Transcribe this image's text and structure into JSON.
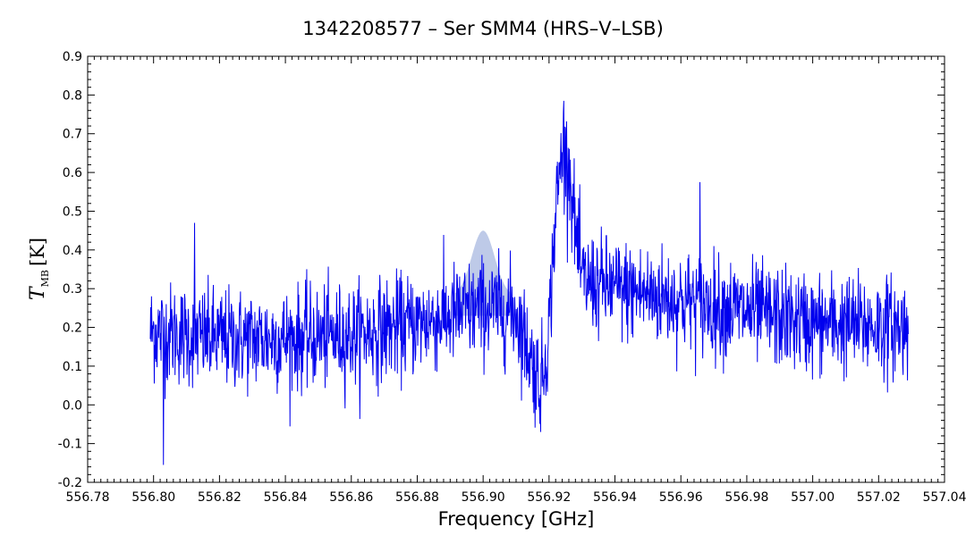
{
  "chart_data": {
    "type": "line",
    "title": "1342208577 – Ser SMM4 (HRS–V–LSB)",
    "xlabel": "Frequency [GHz]",
    "ylabel": {
      "symbol": "T",
      "subscript": "MB",
      "unit": "[K]"
    },
    "xlim": [
      556.78,
      557.04
    ],
    "ylim": [
      -0.2,
      0.9
    ],
    "x_ticks": [
      "556.78",
      "556.80",
      "556.82",
      "556.84",
      "556.86",
      "556.88",
      "556.90",
      "556.92",
      "556.94",
      "556.96",
      "556.98",
      "557.00",
      "557.02",
      "557.04"
    ],
    "y_ticks": [
      "-0.2",
      "-0.1",
      "0.0",
      "0.1",
      "0.2",
      "0.3",
      "0.4",
      "0.5",
      "0.6",
      "0.7",
      "0.8",
      "0.9"
    ],
    "grid": false,
    "series": [
      {
        "color": "#0000ee",
        "x_range": [
          556.799,
          557.029
        ],
        "baseline_profile": [
          [
            556.799,
            0.19
          ],
          [
            556.82,
            0.17
          ],
          [
            556.84,
            0.17
          ],
          [
            556.86,
            0.18
          ],
          [
            556.88,
            0.21
          ],
          [
            556.9,
            0.25
          ],
          [
            556.91,
            0.24
          ],
          [
            556.913,
            0.16
          ],
          [
            556.916,
            0.08
          ],
          [
            556.918,
            0.07
          ],
          [
            556.92,
            0.2
          ],
          [
            556.922,
            0.5
          ],
          [
            556.924,
            0.66
          ],
          [
            556.926,
            0.62
          ],
          [
            556.928,
            0.45
          ],
          [
            556.93,
            0.32
          ],
          [
            556.94,
            0.3
          ],
          [
            556.96,
            0.27
          ],
          [
            556.98,
            0.24
          ],
          [
            557.0,
            0.21
          ],
          [
            557.029,
            0.2
          ]
        ],
        "noise_rms": 0.065,
        "noted_extremes": [
          {
            "x": 556.803,
            "y": -0.155
          },
          {
            "x": 556.9245,
            "y": 0.785
          },
          {
            "x": 556.9658,
            "y": 0.575
          },
          {
            "x": 556.8125,
            "y": 0.47
          },
          {
            "x": 556.9175,
            "y": -0.07
          }
        ]
      }
    ],
    "shaded_band": {
      "color": "#a8b8e0",
      "x_center": 556.9,
      "x_halfwidth": 0.0085,
      "y_bottom": 0.28,
      "y_peak": 0.45
    }
  }
}
